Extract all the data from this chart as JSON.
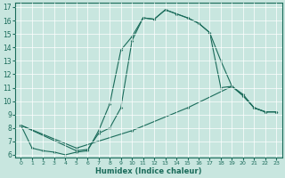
{
  "title": "",
  "xlabel": "Humidex (Indice chaleur)",
  "ylabel": "",
  "xlim": [
    -0.5,
    23.5
  ],
  "ylim": [
    5.8,
    17.3
  ],
  "xticks": [
    0,
    1,
    2,
    3,
    4,
    5,
    6,
    7,
    8,
    9,
    10,
    11,
    12,
    13,
    14,
    15,
    16,
    17,
    18,
    19,
    20,
    21,
    22,
    23
  ],
  "yticks": [
    6,
    7,
    8,
    9,
    10,
    11,
    12,
    13,
    14,
    15,
    16,
    17
  ],
  "bg_color": "#c8e6df",
  "line_color": "#1a6b5a",
  "grid_color": "#ffffff",
  "curve1_x": [
    0,
    1,
    2,
    3,
    4,
    5,
    6,
    7,
    8,
    9,
    10,
    11,
    12,
    13,
    14,
    15,
    16,
    17,
    18,
    19,
    20,
    21,
    22,
    23
  ],
  "curve1_y": [
    8.2,
    6.5,
    6.3,
    6.2,
    6.0,
    6.2,
    6.3,
    7.8,
    9.8,
    13.8,
    14.8,
    16.2,
    16.1,
    16.8,
    16.5,
    16.2,
    15.8,
    15.1,
    13.0,
    11.1,
    10.4,
    9.5,
    9.2,
    9.2
  ],
  "curve2_x": [
    0,
    5,
    6,
    7,
    8,
    9,
    10,
    11,
    12,
    13,
    14,
    15,
    16,
    17,
    18,
    19,
    20,
    21,
    22,
    23
  ],
  "curve2_y": [
    8.2,
    6.3,
    6.4,
    7.6,
    8.0,
    9.5,
    14.5,
    16.2,
    16.1,
    16.8,
    16.5,
    16.2,
    15.8,
    15.1,
    11.0,
    11.1,
    10.4,
    9.5,
    9.2,
    9.2
  ],
  "curve3_x": [
    0,
    5,
    10,
    15,
    19,
    20,
    21,
    22,
    23
  ],
  "curve3_y": [
    8.2,
    6.5,
    7.8,
    9.5,
    11.1,
    10.5,
    9.5,
    9.2,
    9.2
  ]
}
